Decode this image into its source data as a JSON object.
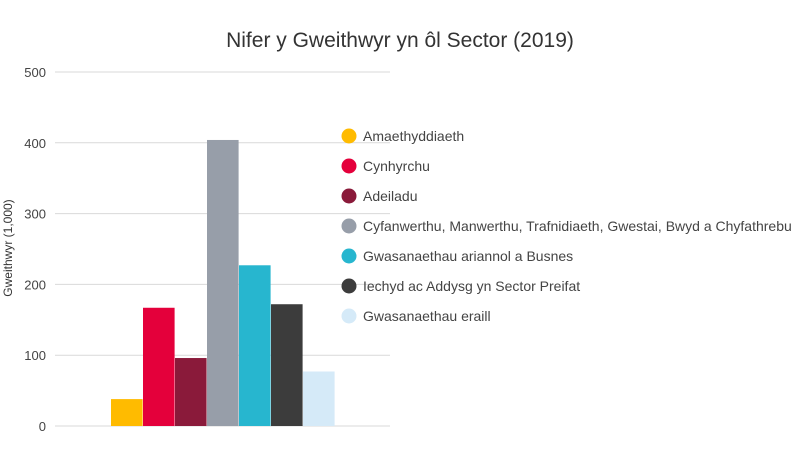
{
  "chart_data": {
    "type": "bar",
    "title": "Nifer y Gweithwyr yn ôl Sector (2019)",
    "xlabel": "",
    "ylabel": "Gweithwyr (1,000)",
    "ylim": [
      0,
      500
    ],
    "yticks": [
      0,
      100,
      200,
      300,
      400,
      500
    ],
    "grid": true,
    "legend_position": "right",
    "series": [
      {
        "name": "Amaethyddiaeth",
        "value": 38,
        "color": "#FFBB00"
      },
      {
        "name": "Cynhyrchu",
        "value": 167,
        "color": "#E4003B"
      },
      {
        "name": "Adeiladu",
        "value": 96,
        "color": "#8A1A3A"
      },
      {
        "name": "Cyfanwerthu, Manwerthu, Trafnidiaeth, Gwestai, Bwyd a Chyfathrebu",
        "value": 404,
        "color": "#979EA9"
      },
      {
        "name": "Gwasanaethau ariannol a Busnes",
        "value": 227,
        "color": "#27B6CF"
      },
      {
        "name": "Iechyd ac Addysg yn Sector Preifat",
        "value": 172,
        "color": "#3C3C3C"
      },
      {
        "name": "Gwasanaethau eraill",
        "value": 77,
        "color": "#D5EAF8"
      }
    ]
  }
}
